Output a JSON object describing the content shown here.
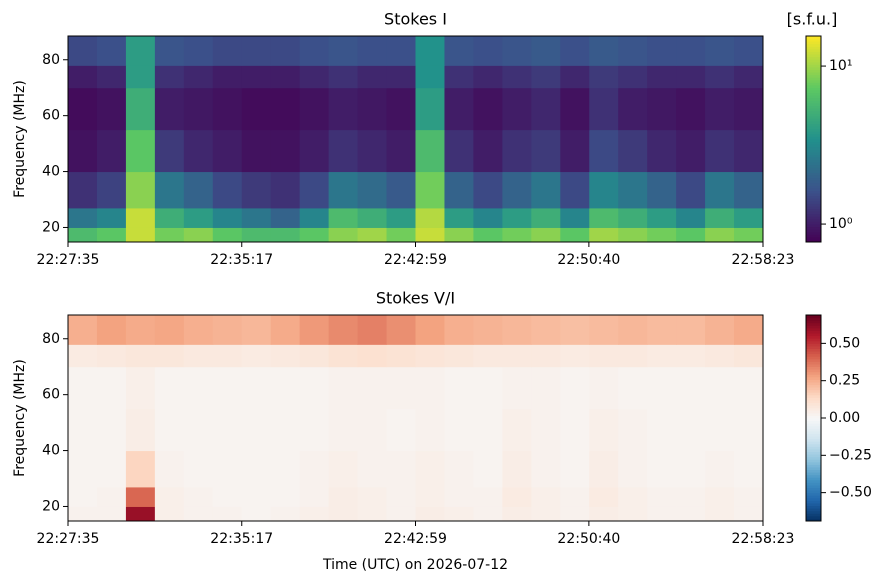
{
  "chart_data": [
    {
      "type": "heatmap",
      "title": "Stokes I",
      "ylabel": "Frequency (MHz)",
      "colorbar_label": "[s.f.u.]",
      "colormap": "viridis",
      "color_scale": "log",
      "x_edges": [
        0,
        77,
        154,
        231,
        308,
        385,
        462,
        539,
        616,
        693,
        770,
        847,
        924,
        1001,
        1078,
        1155,
        1232,
        1309,
        1386,
        1463,
        1540,
        1617,
        1694,
        1771,
        1848
      ],
      "y_edges": [
        14.8,
        20,
        27,
        40,
        55,
        70,
        78,
        88.5
      ],
      "z": [
        [
          6,
          7,
          12,
          8,
          9,
          7,
          6,
          6,
          7,
          9,
          10,
          8,
          12,
          9,
          7,
          8,
          9,
          7,
          10,
          9,
          8,
          7,
          9,
          8
        ],
        [
          2.5,
          3,
          12,
          5,
          4,
          3,
          2.5,
          2,
          3,
          6,
          5,
          4,
          11,
          4,
          3,
          4,
          5,
          3,
          6,
          5,
          4,
          3,
          5,
          4
        ],
        [
          1.2,
          1.4,
          9,
          2.5,
          2,
          1.5,
          1.3,
          1.2,
          1.5,
          2.5,
          2.2,
          1.8,
          8,
          2,
          1.5,
          2,
          2.5,
          1.5,
          3,
          2.5,
          2,
          1.5,
          2.5,
          2
        ],
        [
          0.9,
          1,
          7,
          1.3,
          1.1,
          1,
          0.9,
          0.9,
          1,
          1.2,
          1.1,
          1,
          6,
          1.2,
          1,
          1.2,
          1.3,
          1,
          1.5,
          1.3,
          1.1,
          1,
          1.2,
          1.1
        ],
        [
          0.85,
          0.9,
          5,
          1,
          0.95,
          0.9,
          0.85,
          0.85,
          0.9,
          1,
          0.95,
          0.9,
          4,
          1,
          0.9,
          1,
          1.1,
          0.9,
          1.2,
          1,
          0.95,
          0.9,
          1,
          0.95
        ],
        [
          1,
          1.1,
          4,
          1.2,
          1.1,
          1,
          1,
          1,
          1.1,
          1.2,
          1.1,
          1.1,
          3.5,
          1.2,
          1.1,
          1.2,
          1.3,
          1.1,
          1.3,
          1.2,
          1.1,
          1.1,
          1.2,
          1.1
        ],
        [
          1.5,
          1.6,
          4,
          1.7,
          1.6,
          1.5,
          1.5,
          1.5,
          1.6,
          1.7,
          1.6,
          1.6,
          3.5,
          1.7,
          1.6,
          1.7,
          1.8,
          1.6,
          1.8,
          1.7,
          1.6,
          1.6,
          1.7,
          1.6
        ]
      ],
      "xlim": [
        0,
        1848
      ],
      "xticks": [
        {
          "value": 0,
          "label": "22:27:35"
        },
        {
          "value": 462,
          "label": "22:35:17"
        },
        {
          "value": 924,
          "label": "22:42:59"
        },
        {
          "value": 1385,
          "label": "22:50:40"
        },
        {
          "value": 1848,
          "label": "22:58:23"
        }
      ],
      "ylim": [
        14.8,
        88.5
      ],
      "yticks": [
        20,
        40,
        60,
        80
      ],
      "clim": [
        0.77,
        15.5
      ],
      "cticks": [
        {
          "value": 1,
          "label": "10⁰"
        },
        {
          "value": 10,
          "label": "10¹"
        }
      ]
    },
    {
      "type": "heatmap",
      "title": "Stokes V/I",
      "ylabel": "Frequency (MHz)",
      "xlabel": "Time (UTC) on 2026-07-12",
      "colormap": "RdBu_r",
      "color_scale": "linear",
      "x_edges": [
        0,
        77,
        154,
        231,
        308,
        385,
        462,
        539,
        616,
        693,
        770,
        847,
        924,
        1001,
        1078,
        1155,
        1232,
        1309,
        1386,
        1463,
        1540,
        1617,
        1694,
        1771,
        1848
      ],
      "y_edges": [
        14.8,
        20,
        27,
        40,
        55,
        70,
        78,
        88.5
      ],
      "z": [
        [
          0.03,
          0.03,
          0.6,
          0.04,
          0.03,
          0.03,
          0.02,
          0.03,
          0.04,
          0.05,
          0.04,
          0.03,
          0.05,
          0.04,
          0.03,
          0.05,
          0.04,
          0.03,
          0.05,
          0.04,
          0.03,
          0.03,
          0.04,
          0.03
        ],
        [
          0.02,
          0.03,
          0.4,
          0.04,
          0.03,
          0.02,
          0.02,
          0.02,
          0.03,
          0.05,
          0.04,
          0.03,
          0.04,
          0.03,
          0.03,
          0.06,
          0.04,
          0.03,
          0.06,
          0.04,
          0.03,
          0.03,
          0.04,
          0.03
        ],
        [
          0.02,
          0.02,
          0.15,
          0.03,
          0.02,
          0.02,
          0.02,
          0.02,
          0.03,
          0.04,
          0.03,
          0.03,
          0.04,
          0.03,
          0.02,
          0.05,
          0.03,
          0.02,
          0.05,
          0.03,
          0.02,
          0.02,
          0.03,
          0.02
        ],
        [
          0.02,
          0.02,
          0.05,
          0.02,
          0.02,
          0.02,
          0.02,
          0.02,
          0.02,
          0.03,
          0.03,
          0.02,
          0.03,
          0.02,
          0.02,
          0.04,
          0.03,
          0.02,
          0.04,
          0.03,
          0.02,
          0.02,
          0.02,
          0.02
        ],
        [
          0.02,
          0.02,
          0.04,
          0.02,
          0.02,
          0.02,
          0.02,
          0.02,
          0.02,
          0.03,
          0.03,
          0.03,
          0.03,
          0.02,
          0.02,
          0.03,
          0.03,
          0.02,
          0.03,
          0.02,
          0.02,
          0.02,
          0.02,
          0.02
        ],
        [
          0.06,
          0.07,
          0.08,
          0.08,
          0.07,
          0.07,
          0.06,
          0.07,
          0.08,
          0.1,
          0.11,
          0.1,
          0.09,
          0.08,
          0.07,
          0.07,
          0.07,
          0.06,
          0.07,
          0.07,
          0.06,
          0.06,
          0.07,
          0.08
        ],
        [
          0.25,
          0.28,
          0.26,
          0.27,
          0.25,
          0.24,
          0.23,
          0.26,
          0.3,
          0.33,
          0.35,
          0.32,
          0.28,
          0.25,
          0.24,
          0.23,
          0.22,
          0.21,
          0.22,
          0.23,
          0.22,
          0.22,
          0.24,
          0.26
        ]
      ],
      "xlim": [
        0,
        1848
      ],
      "xticks": [
        {
          "value": 0,
          "label": "22:27:35"
        },
        {
          "value": 462,
          "label": "22:35:17"
        },
        {
          "value": 924,
          "label": "22:42:59"
        },
        {
          "value": 1385,
          "label": "22:50:40"
        },
        {
          "value": 1848,
          "label": "22:58:23"
        }
      ],
      "ylim": [
        14.8,
        88.5
      ],
      "yticks": [
        20,
        40,
        60,
        80
      ],
      "clim": [
        -0.69,
        0.69
      ],
      "cticks": [
        {
          "value": -0.5,
          "label": "−0.50"
        },
        {
          "value": -0.25,
          "label": "−0.25"
        },
        {
          "value": 0,
          "label": "0.00"
        },
        {
          "value": 0.25,
          "label": "0.25"
        },
        {
          "value": 0.5,
          "label": "0.50"
        }
      ]
    }
  ]
}
